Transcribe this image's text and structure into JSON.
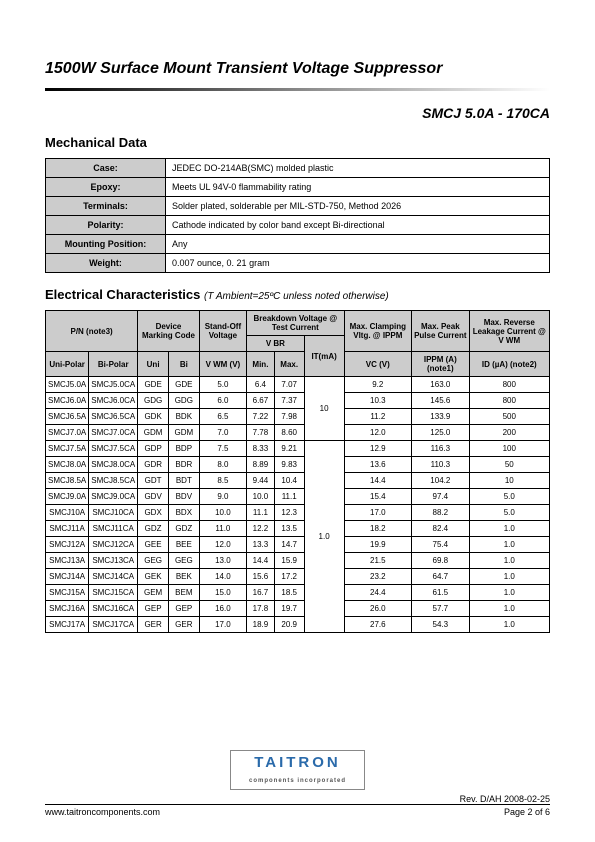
{
  "page": {
    "title": "1500W Surface Mount Transient Voltage Suppressor",
    "subtitle": "SMCJ 5.0A - 170CA"
  },
  "mechanical": {
    "heading": "Mechanical Data",
    "rows": [
      {
        "label": "Case:",
        "value": "JEDEC DO-214AB(SMC) molded plastic"
      },
      {
        "label": "Epoxy:",
        "value": "Meets UL 94V-0 flammability rating"
      },
      {
        "label": "Terminals:",
        "value": "Solder plated, solderable per MIL-STD-750, Method 2026"
      },
      {
        "label": "Polarity:",
        "value": "Cathode indicated by color band except Bi-directional"
      },
      {
        "label": "Mounting Position:",
        "value": "Any"
      },
      {
        "label": "Weight:",
        "value": "0.007 ounce, 0. 21 gram"
      }
    ]
  },
  "electrical": {
    "heading": "Electrical Characteristics",
    "heading_note": "(T Ambient=25ºC unless noted otherwise)",
    "headers": {
      "pn": "P/N  (note3)",
      "marking": "Device Marking Code",
      "standoff": "Stand-Off Voltage",
      "breakdown": "Breakdown Voltage  @ Test Current",
      "vbr": "V BR",
      "it": "IT(mA)",
      "clamp": "Max. Clamping Vltg. @ IPPM",
      "peak": "Max. Peak Pulse Current",
      "leak": "Max. Reverse Leakage Current @ V WM",
      "unipolar": "Uni-Polar",
      "bipolar": "Bi-Polar",
      "uni": "Uni",
      "bi": "Bi",
      "vwm": "V WM (V)",
      "min": "Min.",
      "max": "Max.",
      "vc": "VC  (V)",
      "ippm": "IPPM (A) (note1)",
      "id": "ID (µA) (note2)"
    },
    "it_group1": "10",
    "it_group2": "1.0",
    "rows": [
      {
        "up": "SMCJ5.0A",
        "bp": "SMCJ5.0CA",
        "u": "GDE",
        "b": "GDE",
        "vwm": "5.0",
        "min": "6.4",
        "max": "7.07",
        "vc": "9.2",
        "ippm": "163.0",
        "id": "800"
      },
      {
        "up": "SMCJ6.0A",
        "bp": "SMCJ6.0CA",
        "u": "GDG",
        "b": "GDG",
        "vwm": "6.0",
        "min": "6.67",
        "max": "7.37",
        "vc": "10.3",
        "ippm": "145.6",
        "id": "800"
      },
      {
        "up": "SMCJ6.5A",
        "bp": "SMCJ6.5CA",
        "u": "GDK",
        "b": "BDK",
        "vwm": "6.5",
        "min": "7.22",
        "max": "7.98",
        "vc": "11.2",
        "ippm": "133.9",
        "id": "500"
      },
      {
        "up": "SMCJ7.0A",
        "bp": "SMCJ7.0CA",
        "u": "GDM",
        "b": "GDM",
        "vwm": "7.0",
        "min": "7.78",
        "max": "8.60",
        "vc": "12.0",
        "ippm": "125.0",
        "id": "200"
      },
      {
        "up": "SMCJ7.5A",
        "bp": "SMCJ7.5CA",
        "u": "GDP",
        "b": "BDP",
        "vwm": "7.5",
        "min": "8.33",
        "max": "9.21",
        "vc": "12.9",
        "ippm": "116.3",
        "id": "100"
      },
      {
        "up": "SMCJ8.0A",
        "bp": "SMCJ8.0CA",
        "u": "GDR",
        "b": "BDR",
        "vwm": "8.0",
        "min": "8.89",
        "max": "9.83",
        "vc": "13.6",
        "ippm": "110.3",
        "id": "50"
      },
      {
        "up": "SMCJ8.5A",
        "bp": "SMCJ8.5CA",
        "u": "GDT",
        "b": "BDT",
        "vwm": "8.5",
        "min": "9.44",
        "max": "10.4",
        "vc": "14.4",
        "ippm": "104.2",
        "id": "10"
      },
      {
        "up": "SMCJ9.0A",
        "bp": "SMCJ9.0CA",
        "u": "GDV",
        "b": "BDV",
        "vwm": "9.0",
        "min": "10.0",
        "max": "11.1",
        "vc": "15.4",
        "ippm": "97.4",
        "id": "5.0"
      },
      {
        "up": "SMCJ10A",
        "bp": "SMCJ10CA",
        "u": "GDX",
        "b": "BDX",
        "vwm": "10.0",
        "min": "11.1",
        "max": "12.3",
        "vc": "17.0",
        "ippm": "88.2",
        "id": "5.0"
      },
      {
        "up": "SMCJ11A",
        "bp": "SMCJ11CA",
        "u": "GDZ",
        "b": "GDZ",
        "vwm": "11.0",
        "min": "12.2",
        "max": "13.5",
        "vc": "18.2",
        "ippm": "82.4",
        "id": "1.0"
      },
      {
        "up": "SMCJ12A",
        "bp": "SMCJ12CA",
        "u": "GEE",
        "b": "BEE",
        "vwm": "12.0",
        "min": "13.3",
        "max": "14.7",
        "vc": "19.9",
        "ippm": "75.4",
        "id": "1.0"
      },
      {
        "up": "SMCJ13A",
        "bp": "SMCJ13CA",
        "u": "GEG",
        "b": "GEG",
        "vwm": "13.0",
        "min": "14.4",
        "max": "15.9",
        "vc": "21.5",
        "ippm": "69.8",
        "id": "1.0"
      },
      {
        "up": "SMCJ14A",
        "bp": "SMCJ14CA",
        "u": "GEK",
        "b": "BEK",
        "vwm": "14.0",
        "min": "15.6",
        "max": "17.2",
        "vc": "23.2",
        "ippm": "64.7",
        "id": "1.0"
      },
      {
        "up": "SMCJ15A",
        "bp": "SMCJ15CA",
        "u": "GEM",
        "b": "BEM",
        "vwm": "15.0",
        "min": "16.7",
        "max": "18.5",
        "vc": "24.4",
        "ippm": "61.5",
        "id": "1.0"
      },
      {
        "up": "SMCJ16A",
        "bp": "SMCJ16CA",
        "u": "GEP",
        "b": "GEP",
        "vwm": "16.0",
        "min": "17.8",
        "max": "19.7",
        "vc": "26.0",
        "ippm": "57.7",
        "id": "1.0"
      },
      {
        "up": "SMCJ17A",
        "bp": "SMCJ17CA",
        "u": "GER",
        "b": "GER",
        "vwm": "17.0",
        "min": "18.9",
        "max": "20.9",
        "vc": "27.6",
        "ippm": "54.3",
        "id": "1.0"
      }
    ]
  },
  "footer": {
    "logo": "TAITRON",
    "logo_sub": "components incorporated",
    "url": "www.taitroncomponents.com",
    "rev": "Rev. D/AH 2008-02-25",
    "page": "Page 2 of 6"
  },
  "style": {
    "colors": {
      "header_bg": "#cccccc",
      "border": "#000000",
      "logo": "#2a6aaa",
      "text": "#000000",
      "background": "#ffffff"
    },
    "fonts": {
      "body_pt": 9,
      "title_pt": 16
    }
  }
}
